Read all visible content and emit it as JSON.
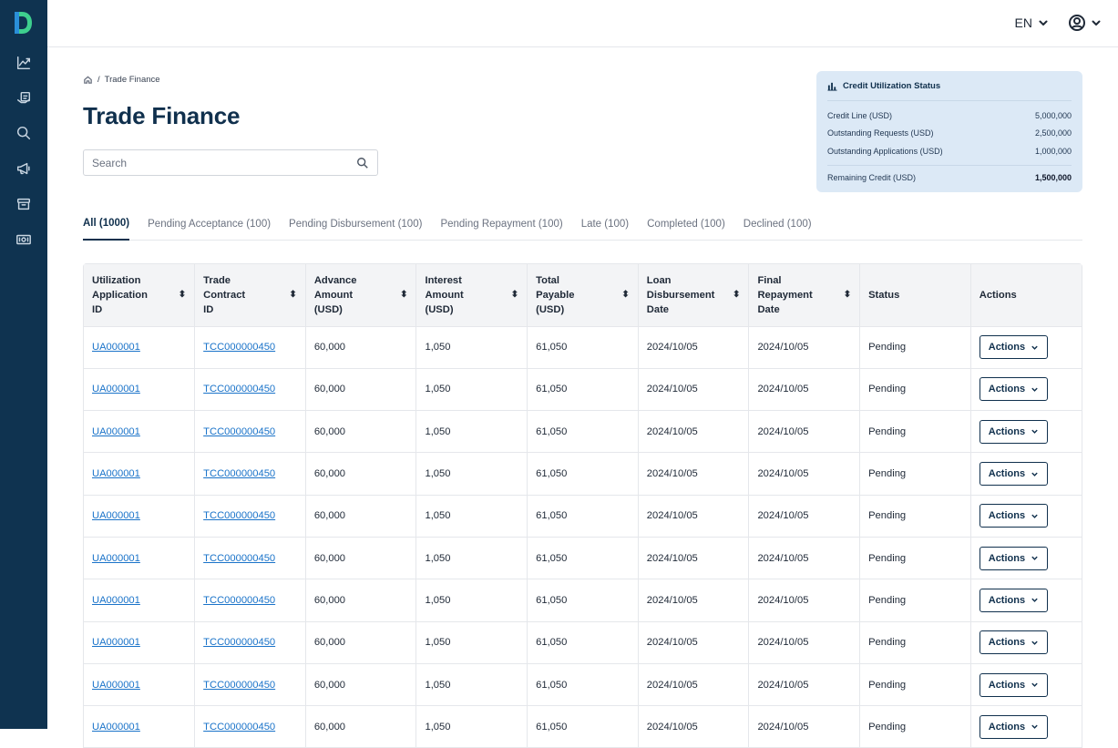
{
  "app": {
    "logo": "D"
  },
  "sidebar": {
    "items": [
      {
        "icon": "chart-line-icon"
      },
      {
        "icon": "invoice-icon"
      },
      {
        "icon": "search-icon"
      },
      {
        "icon": "megaphone-icon"
      },
      {
        "icon": "archive-icon"
      },
      {
        "icon": "cash-icon"
      }
    ]
  },
  "header": {
    "language": "EN",
    "user_icon": "user-circle-icon"
  },
  "breadcrumb": {
    "home_icon": "home-icon",
    "separator": "/",
    "current": "Trade Finance"
  },
  "page": {
    "title": "Trade Finance"
  },
  "search": {
    "placeholder": "Search"
  },
  "credit": {
    "title": "Credit Utilization Status",
    "rows": [
      {
        "label": "Credit Line (USD)",
        "value": "5,000,000"
      },
      {
        "label": "Outstanding Requests (USD)",
        "value": "2,500,000"
      },
      {
        "label": "Outstanding Applications (USD)",
        "value": "1,000,000"
      }
    ],
    "total": {
      "label": "Remaining Credit (USD)",
      "value": "1,500,000"
    }
  },
  "tabs": [
    {
      "label": "All (1000)"
    },
    {
      "label": "Pending Acceptance (100)"
    },
    {
      "label": "Pending Disbursement (100)"
    },
    {
      "label": "Pending Repayment (100)"
    },
    {
      "label": "Late (100)"
    },
    {
      "label": "Completed (100)"
    },
    {
      "label": "Declined (100)"
    }
  ],
  "table": {
    "columns": [
      {
        "label": "Utilization Application ID",
        "lines": [
          "Utilization",
          "Application",
          "ID"
        ],
        "sortable": true
      },
      {
        "label": "Trade Contract ID",
        "lines": [
          "Trade",
          "Contract",
          "ID"
        ],
        "sortable": true
      },
      {
        "label": "Advance Amount (USD)",
        "lines": [
          "Advance",
          "Amount",
          "(USD)"
        ],
        "sortable": true
      },
      {
        "label": "Interest Amount (USD)",
        "lines": [
          "Interest",
          "Amount",
          "(USD)"
        ],
        "sortable": true
      },
      {
        "label": "Total Payable (USD)",
        "lines": [
          "Total",
          "Payable",
          "(USD)"
        ],
        "sortable": true
      },
      {
        "label": "Loan Disbursement Date",
        "lines": [
          "Loan",
          "Disbursement",
          "Date"
        ],
        "sortable": true
      },
      {
        "label": "Final Repayment Date",
        "lines": [
          "Final",
          "Repayment",
          "Date"
        ],
        "sortable": true
      },
      {
        "label": "Status",
        "lines": [
          "Status"
        ],
        "sortable": false
      },
      {
        "label": "Actions",
        "lines": [
          "Actions"
        ],
        "sortable": false
      }
    ],
    "sort_glyph": "⬍",
    "action_label": "Actions",
    "rows": [
      [
        "UA000001",
        "TCC000000450",
        "60,000",
        "1,050",
        "61,050",
        "2024/10/05",
        "2024/10/05",
        "Pending"
      ],
      [
        "UA000001",
        "TCC000000450",
        "60,000",
        "1,050",
        "61,050",
        "2024/10/05",
        "2024/10/05",
        "Pending"
      ],
      [
        "UA000001",
        "TCC000000450",
        "60,000",
        "1,050",
        "61,050",
        "2024/10/05",
        "2024/10/05",
        "Pending"
      ],
      [
        "UA000001",
        "TCC000000450",
        "60,000",
        "1,050",
        "61,050",
        "2024/10/05",
        "2024/10/05",
        "Pending"
      ],
      [
        "UA000001",
        "TCC000000450",
        "60,000",
        "1,050",
        "61,050",
        "2024/10/05",
        "2024/10/05",
        "Pending"
      ],
      [
        "UA000001",
        "TCC000000450",
        "60,000",
        "1,050",
        "61,050",
        "2024/10/05",
        "2024/10/05",
        "Pending"
      ],
      [
        "UA000001",
        "TCC000000450",
        "60,000",
        "1,050",
        "61,050",
        "2024/10/05",
        "2024/10/05",
        "Pending"
      ],
      [
        "UA000001",
        "TCC000000450",
        "60,000",
        "1,050",
        "61,050",
        "2024/10/05",
        "2024/10/05",
        "Pending"
      ],
      [
        "UA000001",
        "TCC000000450",
        "60,000",
        "1,050",
        "61,050",
        "2024/10/05",
        "2024/10/05",
        "Pending"
      ],
      [
        "UA000001",
        "TCC000000450",
        "60,000",
        "1,050",
        "61,050",
        "2024/10/05",
        "2024/10/05",
        "Pending"
      ]
    ]
  },
  "colors": {
    "sidebar": "#0f3350",
    "primary": "#10304d",
    "link": "#1a73c9",
    "card": "#dce9f6",
    "logo_green": "#3ecf8e",
    "logo_blue": "#2a8fd8"
  }
}
